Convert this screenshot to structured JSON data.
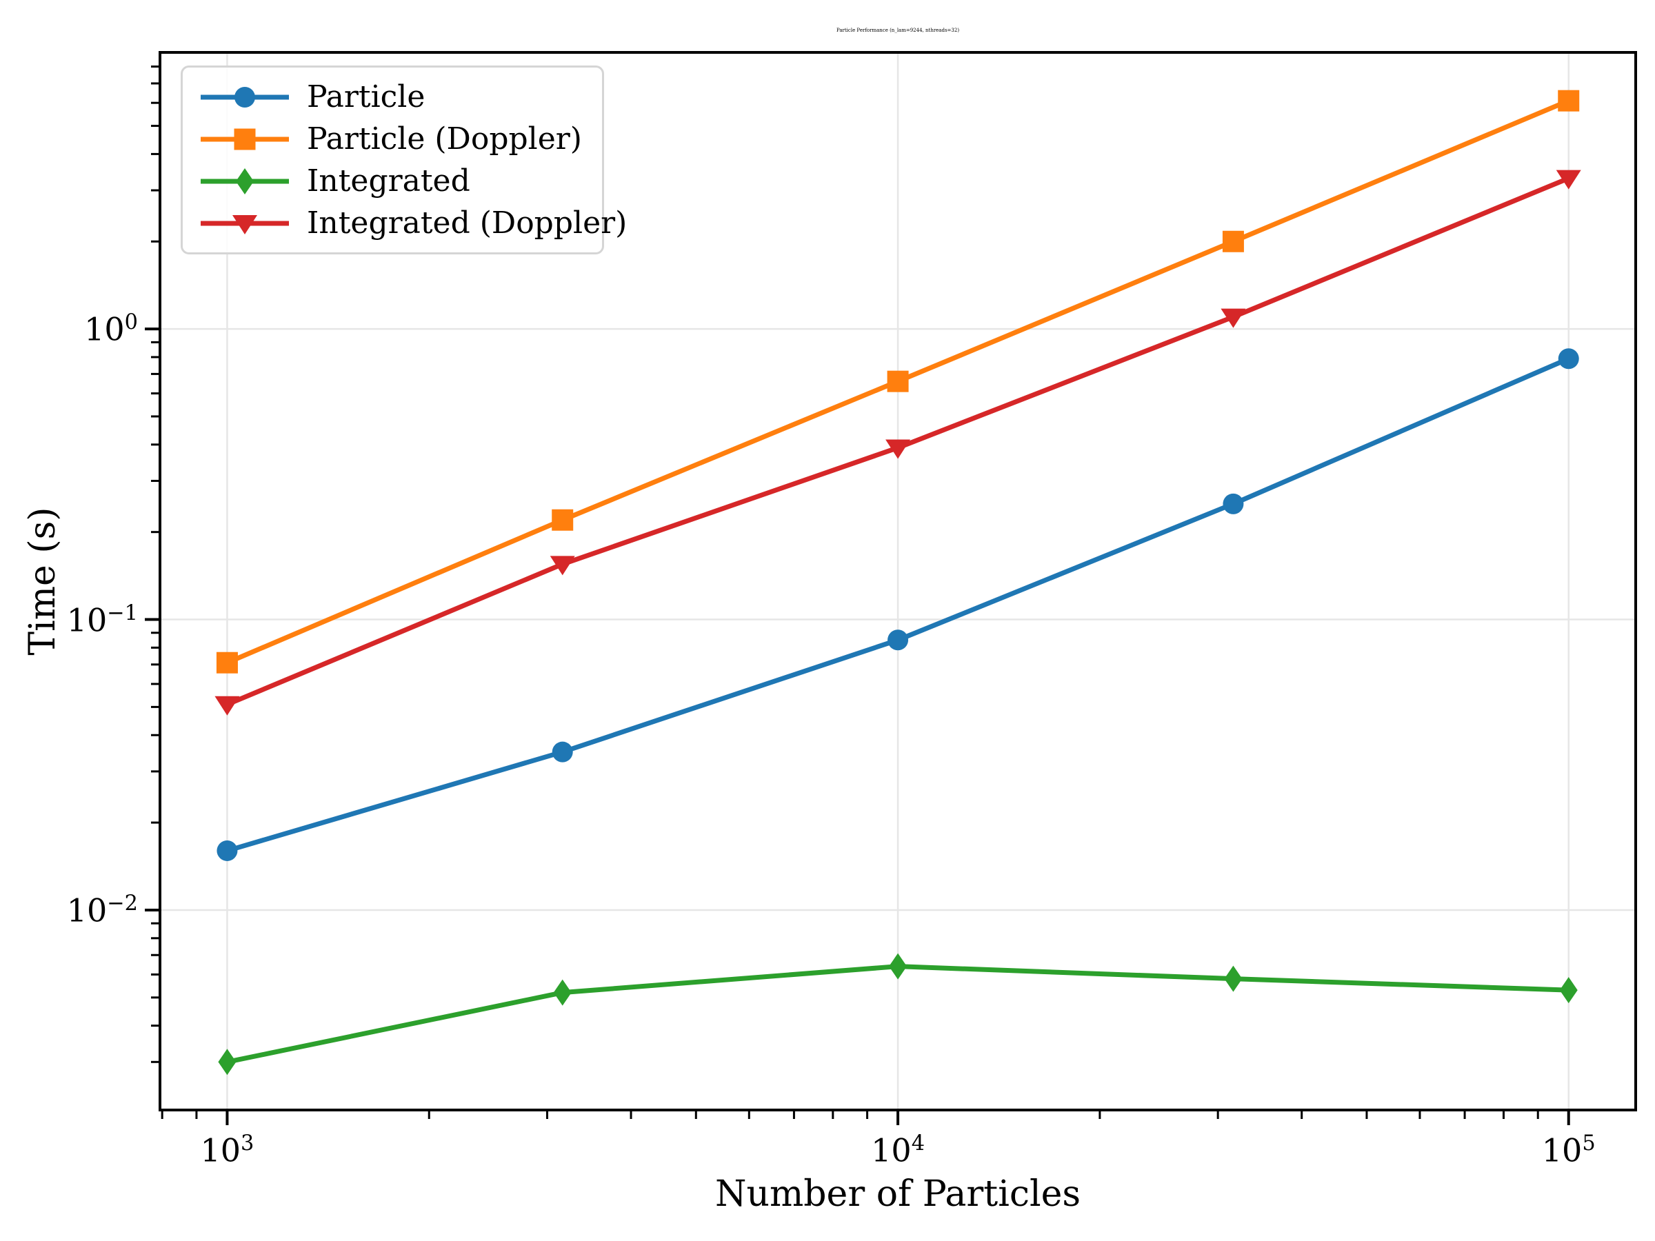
{
  "figure": {
    "background": "#ffffff"
  },
  "chart_data": {
    "type": "line",
    "title": "Particle Performance (n_lam=9244, nthreads=32)",
    "xlabel": "Number of Particles",
    "ylabel": "Time (s)",
    "xscale": "log",
    "yscale": "log",
    "grid": true,
    "legend_position": "upper left",
    "xlim": [
      794,
      125893
    ],
    "ylim": [
      0.00205,
      8.95
    ],
    "x": [
      1000,
      3162,
      10000,
      31623,
      100000
    ],
    "series": [
      {
        "name": "Particle",
        "color": "#1f77b4",
        "marker": "circle",
        "values": [
          0.016,
          0.035,
          0.085,
          0.25,
          0.79
        ]
      },
      {
        "name": "Particle (Doppler)",
        "color": "#ff7f0e",
        "marker": "square",
        "values": [
          0.071,
          0.22,
          0.66,
          2.0,
          6.1
        ]
      },
      {
        "name": "Integrated",
        "color": "#2ca02c",
        "marker": "diamond",
        "values": [
          0.003,
          0.0052,
          0.0064,
          0.0058,
          0.0053
        ]
      },
      {
        "name": "Integrated (Doppler)",
        "color": "#d62728",
        "marker": "triangle-down",
        "values": [
          0.051,
          0.155,
          0.39,
          1.1,
          3.3
        ]
      }
    ],
    "x_ticks": [
      {
        "value": 1000,
        "base": "10",
        "exp": "3"
      },
      {
        "value": 10000,
        "base": "10",
        "exp": "4"
      },
      {
        "value": 100000,
        "base": "10",
        "exp": "5"
      }
    ],
    "y_ticks": [
      {
        "value": 1,
        "base": "10",
        "exp": "0"
      },
      {
        "value": 0.1,
        "base": "10",
        "exp": "−1"
      },
      {
        "value": 0.01,
        "base": "10",
        "exp": "−2"
      }
    ],
    "style": {
      "grid_color": "#e6e6e6",
      "spine_color": "#000000",
      "line_width": 7
    }
  }
}
